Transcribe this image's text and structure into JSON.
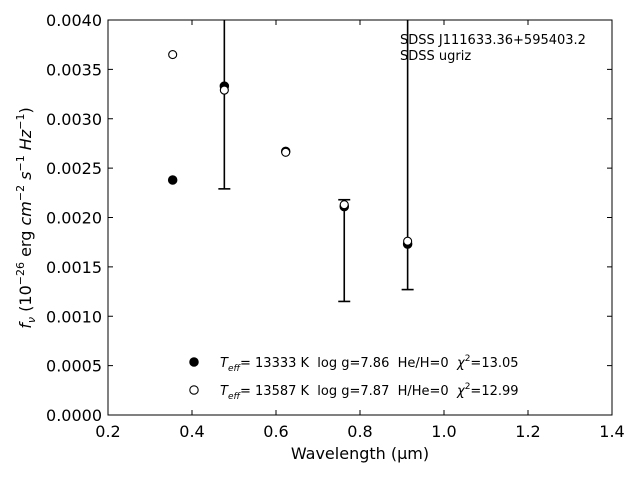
{
  "chart_data": {
    "type": "scatter",
    "xlabel": "Wavelength (μm)",
    "ylabel": "f_ν (10^-26 erg cm^-2 s^-1 Hz^-1)",
    "xlim": [
      0.2,
      1.4
    ],
    "ylim": [
      0.0,
      0.004
    ],
    "x_ticks": [
      "0.2",
      "0.4",
      "0.6",
      "0.8",
      "1.0",
      "1.2",
      "1.4"
    ],
    "y_ticks": [
      "0.0000",
      "0.0005",
      "0.0010",
      "0.0015",
      "0.0020",
      "0.0025",
      "0.0030",
      "0.0035",
      "0.0040"
    ],
    "grid": false,
    "legend_position": "bottom-center",
    "annotation": {
      "line1": "SDSS J111633.36+595403.2",
      "line2": "SDSS ugriz"
    },
    "filters": [
      "u",
      "g",
      "r",
      "i",
      "z"
    ],
    "observed": {
      "x": [
        0.354,
        0.477,
        0.6231,
        0.7625,
        0.9134
      ],
      "y": [
        0.00238,
        0.0033,
        0.00266,
        0.00213,
        0.00175
      ],
      "err_low": [
        0.0,
        0.00101,
        0.0,
        0.00098,
        0.00048
      ],
      "err_high": [
        0.0,
        0.0009,
        0.0,
        5e-05,
        0.0025
      ]
    },
    "series": [
      {
        "name": "T_eff= 13333 K  log g=7.86  He/H=0  χ²=13.05",
        "marker": "filled-circle",
        "x": [
          0.354,
          0.477,
          0.6231,
          0.7625,
          0.9134
        ],
        "y": [
          0.00238,
          0.00333,
          0.00267,
          0.00211,
          0.00173
        ]
      },
      {
        "name": "T_eff= 13587 K  log g=7.87  H/He=0  χ²=12.99",
        "marker": "open-circle",
        "x": [
          0.354,
          0.477,
          0.6231,
          0.7625,
          0.9134
        ],
        "y": [
          0.00365,
          0.00329,
          0.00266,
          0.00213,
          0.00176
        ]
      }
    ],
    "legend": [
      {
        "marker": "filled-circle",
        "prefix": "T",
        "sub": "eff",
        "temp": "= 13333 K",
        "logg": "log g=7.86",
        "comp": "He/H=0",
        "chi_label": "χ",
        "chi_sup": "2",
        "chi_val": "=13.05"
      },
      {
        "marker": "open-circle",
        "prefix": "T",
        "sub": "eff",
        "temp": "= 13587 K",
        "logg": "log g=7.87",
        "comp": "H/He=0",
        "chi_label": "χ",
        "chi_sup": "2",
        "chi_val": "=12.99"
      }
    ],
    "colors": {
      "axis": "#000000",
      "marker": "#000000",
      "background": "#ffffff"
    }
  }
}
